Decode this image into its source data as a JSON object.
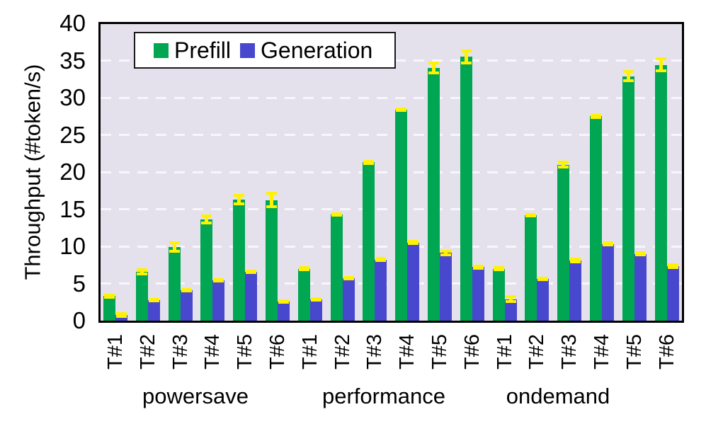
{
  "chart_data": {
    "type": "bar",
    "title": "",
    "ylabel": "Throughput (#token/s)",
    "xlabel": "",
    "ylim": [
      0,
      40
    ],
    "yticks": [
      0,
      5,
      10,
      15,
      20,
      25,
      30,
      35,
      40
    ],
    "grid": "horizontal-dashed",
    "legend_position": "top-left-inside",
    "categories": [
      "T#1",
      "T#2",
      "T#3",
      "T#4",
      "T#5",
      "T#6"
    ],
    "series": [
      {
        "name": "Prefill",
        "color": "#00A652"
      },
      {
        "name": "Generation",
        "color": "#4848CE"
      }
    ],
    "error_bars": true,
    "groups": [
      {
        "label": "powersave",
        "prefill": [
          3.3,
          6.6,
          9.9,
          13.6,
          16.3,
          16.2
        ],
        "prefill_err": [
          0.15,
          0.3,
          0.55,
          0.5,
          0.6,
          0.9
        ],
        "generation": [
          0.8,
          2.8,
          4.1,
          5.4,
          6.6,
          2.6
        ],
        "generation_err": [
          0.2,
          0.1,
          0.1,
          0.1,
          0.1,
          0.1
        ]
      },
      {
        "label": "performance",
        "prefill": [
          7.0,
          14.3,
          21.3,
          28.4,
          34.0,
          35.5
        ],
        "prefill_err": [
          0.1,
          0.1,
          0.15,
          0.1,
          0.7,
          0.8
        ],
        "generation": [
          2.9,
          5.7,
          8.2,
          10.5,
          9.1,
          7.2
        ],
        "generation_err": [
          0.1,
          0.1,
          0.15,
          0.15,
          0.2,
          0.15
        ]
      },
      {
        "label": "ondemand",
        "prefill": [
          7.0,
          14.2,
          21.0,
          27.5,
          32.9,
          34.4
        ],
        "prefill_err": [
          0.1,
          0.1,
          0.3,
          0.15,
          0.6,
          0.8
        ],
        "generation": [
          2.9,
          5.6,
          8.1,
          10.3,
          9.0,
          7.3
        ],
        "generation_err": [
          0.35,
          0.1,
          0.15,
          0.15,
          0.15,
          0.2
        ]
      }
    ],
    "colors": {
      "prefill": "#00A652",
      "generation": "#4848CE",
      "error_bar": "#FFF200",
      "plot_background": "#E5E1EC",
      "gridline": "#F8F6FB",
      "axis": "#000000",
      "page_background": "#FFFFFF"
    }
  }
}
